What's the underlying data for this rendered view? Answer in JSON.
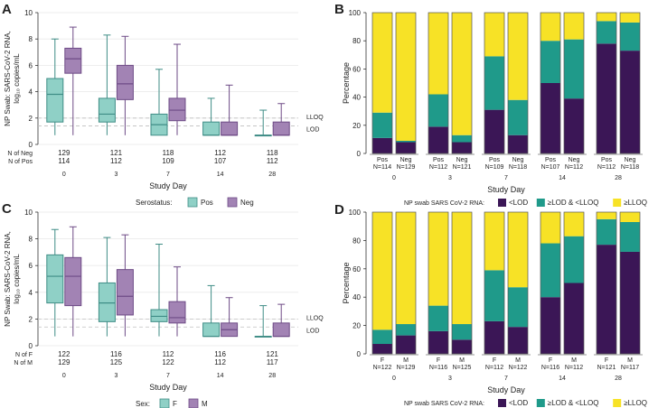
{
  "colors": {
    "pos": "#8fd0c6",
    "pos_stroke": "#3f8d86",
    "neg": "#a283b4",
    "neg_stroke": "#6e4b86",
    "lt_lod": "#3b1656",
    "lod_lloq": "#1f9a8a",
    "ge_lloq": "#f7e226",
    "grid": "#e9e9e9",
    "ref_line": "#bfbfbf",
    "bar_outline": "#555555"
  },
  "chart_data": [
    {
      "panel": "A",
      "type": "box",
      "ylabel_line1": "NP Swab: SARS-CoV-2 RNA,",
      "ylabel_line2": "log₁₀ copies/mL",
      "xlabel": "Study Day",
      "ylim": [
        0,
        10
      ],
      "yticks": [
        "0",
        "2",
        "4",
        "6",
        "8",
        "10"
      ],
      "categories": [
        "0",
        "3",
        "7",
        "14",
        "28"
      ],
      "lloq": 2.0,
      "lod": 1.4,
      "lloq_label": "LLOQ",
      "lod_label": "LOD",
      "legend_title": "Serostatus:",
      "series": [
        {
          "name": "Pos",
          "color_key": "pos",
          "boxes": [
            {
              "min": 0.7,
              "q1": 1.7,
              "median": 3.8,
              "q3": 5.0,
              "max": 8.0
            },
            {
              "min": 0.7,
              "q1": 1.7,
              "median": 2.3,
              "q3": 3.5,
              "max": 8.3
            },
            {
              "min": 0.7,
              "q1": 0.7,
              "median": 1.5,
              "q3": 2.3,
              "max": 5.7
            },
            {
              "min": 0.7,
              "q1": 0.7,
              "median": 0.7,
              "q3": 1.7,
              "max": 3.5
            },
            {
              "min": 0.7,
              "q1": 0.7,
              "median": 0.7,
              "q3": 0.7,
              "max": 2.6
            }
          ]
        },
        {
          "name": "Neg",
          "color_key": "neg",
          "boxes": [
            {
              "min": 0.7,
              "q1": 5.4,
              "median": 6.5,
              "q3": 7.3,
              "max": 8.9
            },
            {
              "min": 0.7,
              "q1": 3.4,
              "median": 4.6,
              "q3": 6.0,
              "max": 8.2
            },
            {
              "min": 0.7,
              "q1": 1.8,
              "median": 2.6,
              "q3": 3.5,
              "max": 7.6
            },
            {
              "min": 0.7,
              "q1": 0.7,
              "median": 0.7,
              "q3": 1.7,
              "max": 4.5
            },
            {
              "min": 0.7,
              "q1": 0.7,
              "median": 0.7,
              "q3": 1.7,
              "max": 3.1
            }
          ]
        }
      ],
      "n_rows": [
        {
          "label": "N of Neg",
          "values": [
            "129",
            "121",
            "118",
            "112",
            "118"
          ]
        },
        {
          "label": "N of Pos",
          "values": [
            "114",
            "112",
            "109",
            "107",
            "112"
          ]
        }
      ]
    },
    {
      "panel": "B",
      "type": "stacked-bar",
      "ylabel": "Percentage",
      "xlabel": "Study Day",
      "ylim": [
        0,
        100
      ],
      "yticks": [
        "0",
        "20",
        "40",
        "60",
        "80",
        "100"
      ],
      "categories": [
        "0",
        "3",
        "7",
        "14",
        "28"
      ],
      "legend_title": "NP swab SARS CoV-2 RNA:",
      "legend": [
        "<LOD",
        "≥LOD & <LLOQ",
        "≥LLOQ"
      ],
      "bars": [
        {
          "group": "Pos",
          "n": "N=114",
          "lt_lod": 11,
          "lod_lloq": 18,
          "ge_lloq": 71
        },
        {
          "group": "Neg",
          "n": "N=129",
          "lt_lod": 8,
          "lod_lloq": 1,
          "ge_lloq": 91
        },
        {
          "group": "Pos",
          "n": "N=112",
          "lt_lod": 19,
          "lod_lloq": 23,
          "ge_lloq": 58
        },
        {
          "group": "Neg",
          "n": "N=121",
          "lt_lod": 8,
          "lod_lloq": 5,
          "ge_lloq": 87
        },
        {
          "group": "Pos",
          "n": "N=109",
          "lt_lod": 31,
          "lod_lloq": 38,
          "ge_lloq": 31
        },
        {
          "group": "Neg",
          "n": "N=118",
          "lt_lod": 13,
          "lod_lloq": 25,
          "ge_lloq": 62
        },
        {
          "group": "Pos",
          "n": "N=107",
          "lt_lod": 50,
          "lod_lloq": 30,
          "ge_lloq": 20
        },
        {
          "group": "Neg",
          "n": "N=112",
          "lt_lod": 39,
          "lod_lloq": 42,
          "ge_lloq": 19
        },
        {
          "group": "Pos",
          "n": "N=112",
          "lt_lod": 78,
          "lod_lloq": 16,
          "ge_lloq": 6
        },
        {
          "group": "Neg",
          "n": "N=118",
          "lt_lod": 73,
          "lod_lloq": 20,
          "ge_lloq": 7
        }
      ]
    },
    {
      "panel": "C",
      "type": "box",
      "ylabel_line1": "NP Swab: SARS-CoV-2 RNA,",
      "ylabel_line2": "log₁₀ copies/mL",
      "xlabel": "Study Day",
      "ylim": [
        0,
        10
      ],
      "yticks": [
        "0",
        "2",
        "4",
        "6",
        "8",
        "10"
      ],
      "categories": [
        "0",
        "3",
        "7",
        "14",
        "28"
      ],
      "lloq": 2.0,
      "lod": 1.4,
      "lloq_label": "LLOQ",
      "lod_label": "LOD",
      "legend_title": "Sex:",
      "series": [
        {
          "name": "F",
          "color_key": "pos",
          "boxes": [
            {
              "min": 0.7,
              "q1": 3.2,
              "median": 5.2,
              "q3": 6.8,
              "max": 8.7
            },
            {
              "min": 0.7,
              "q1": 1.8,
              "median": 3.2,
              "q3": 4.7,
              "max": 8.1
            },
            {
              "min": 0.7,
              "q1": 1.8,
              "median": 2.2,
              "q3": 2.7,
              "max": 7.6
            },
            {
              "min": 0.7,
              "q1": 0.7,
              "median": 0.7,
              "q3": 1.7,
              "max": 4.5
            },
            {
              "min": 0.7,
              "q1": 0.7,
              "median": 0.7,
              "q3": 0.7,
              "max": 3.0
            }
          ]
        },
        {
          "name": "M",
          "color_key": "neg",
          "boxes": [
            {
              "min": 0.7,
              "q1": 3.0,
              "median": 5.2,
              "q3": 6.6,
              "max": 8.9
            },
            {
              "min": 0.7,
              "q1": 2.3,
              "median": 3.7,
              "q3": 5.7,
              "max": 8.3
            },
            {
              "min": 0.7,
              "q1": 1.7,
              "median": 2.1,
              "q3": 3.3,
              "max": 5.9
            },
            {
              "min": 0.7,
              "q1": 0.7,
              "median": 1.2,
              "q3": 1.7,
              "max": 3.6
            },
            {
              "min": 0.7,
              "q1": 0.7,
              "median": 0.7,
              "q3": 1.7,
              "max": 3.1
            }
          ]
        }
      ],
      "n_rows": [
        {
          "label": "N of F",
          "values": [
            "122",
            "116",
            "112",
            "116",
            "121"
          ]
        },
        {
          "label": "N of M",
          "values": [
            "129",
            "125",
            "122",
            "112",
            "117"
          ]
        }
      ]
    },
    {
      "panel": "D",
      "type": "stacked-bar",
      "ylabel": "Percentage",
      "xlabel": "Study Day",
      "ylim": [
        0,
        100
      ],
      "yticks": [
        "0",
        "20",
        "40",
        "60",
        "80",
        "100"
      ],
      "categories": [
        "0",
        "3",
        "7",
        "14",
        "28"
      ],
      "legend_title": "NP swab SARS CoV-2 RNA:",
      "legend": [
        "<LOD",
        "≥LOD & <LLOQ",
        "≥LLOQ"
      ],
      "bars": [
        {
          "group": "F",
          "n": "N=122",
          "lt_lod": 7,
          "lod_lloq": 10,
          "ge_lloq": 83
        },
        {
          "group": "M",
          "n": "N=129",
          "lt_lod": 13,
          "lod_lloq": 8,
          "ge_lloq": 79
        },
        {
          "group": "F",
          "n": "N=116",
          "lt_lod": 16,
          "lod_lloq": 18,
          "ge_lloq": 66
        },
        {
          "group": "M",
          "n": "N=125",
          "lt_lod": 10,
          "lod_lloq": 11,
          "ge_lloq": 79
        },
        {
          "group": "F",
          "n": "N=112",
          "lt_lod": 23,
          "lod_lloq": 36,
          "ge_lloq": 41
        },
        {
          "group": "M",
          "n": "N=122",
          "lt_lod": 19,
          "lod_lloq": 28,
          "ge_lloq": 53
        },
        {
          "group": "F",
          "n": "N=116",
          "lt_lod": 40,
          "lod_lloq": 38,
          "ge_lloq": 22
        },
        {
          "group": "M",
          "n": "N=112",
          "lt_lod": 50,
          "lod_lloq": 33,
          "ge_lloq": 17
        },
        {
          "group": "F",
          "n": "N=121",
          "lt_lod": 77,
          "lod_lloq": 18,
          "ge_lloq": 5
        },
        {
          "group": "M",
          "n": "N=117",
          "lt_lod": 72,
          "lod_lloq": 21,
          "ge_lloq": 7
        }
      ]
    }
  ]
}
